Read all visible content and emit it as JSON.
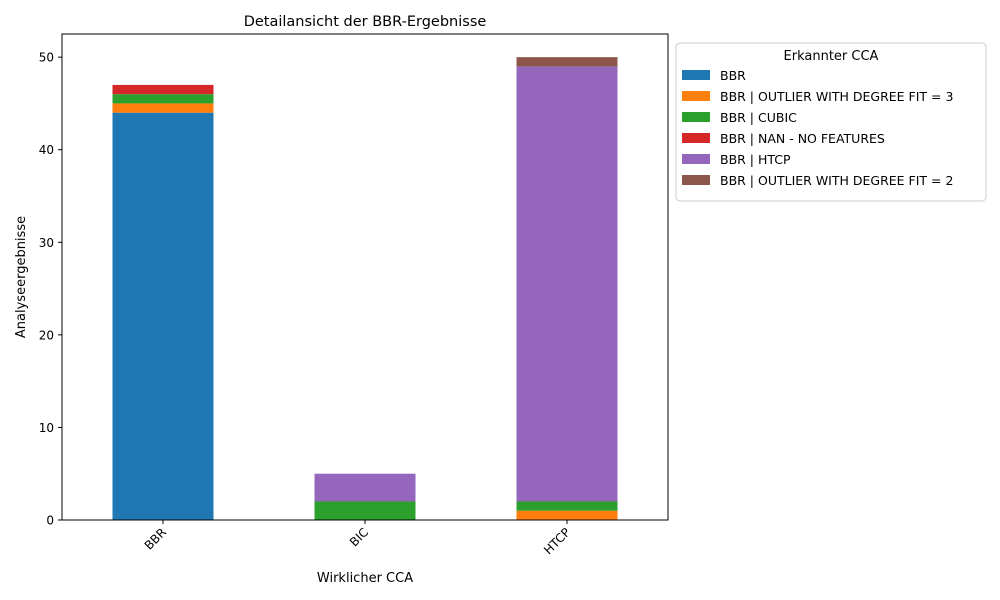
{
  "chart_data": {
    "type": "bar",
    "stacked": true,
    "title": "Detailansicht der BBR-Ergebnisse",
    "xlabel": "Wirklicher CCA",
    "ylabel": "Analyseergebnisse",
    "categories": [
      "BBR",
      "BIC",
      "HTCP"
    ],
    "ylim": [
      0,
      52.5
    ],
    "yticks": [
      0,
      10,
      20,
      30,
      40,
      50
    ],
    "grid": false,
    "legend": {
      "title": "Erkannter CCA",
      "placement": "outside-upper-right"
    },
    "series": [
      {
        "name": "BBR",
        "color": "#1f77b4",
        "values": [
          44,
          0,
          0
        ]
      },
      {
        "name": "BBR | OUTLIER WITH DEGREE FIT = 3",
        "color": "#ff7f0e",
        "values": [
          1,
          0,
          1
        ]
      },
      {
        "name": "BBR | CUBIC",
        "color": "#2ca02c",
        "values": [
          1,
          2,
          1
        ]
      },
      {
        "name": "BBR | NAN - NO FEATURES",
        "color": "#d62728",
        "values": [
          1,
          0,
          0
        ]
      },
      {
        "name": "BBR | HTCP",
        "color": "#9467bd",
        "values": [
          0,
          3,
          47
        ]
      },
      {
        "name": "BBR | OUTLIER WITH DEGREE FIT = 2",
        "color": "#8c564b",
        "values": [
          0,
          0,
          1
        ]
      }
    ]
  }
}
